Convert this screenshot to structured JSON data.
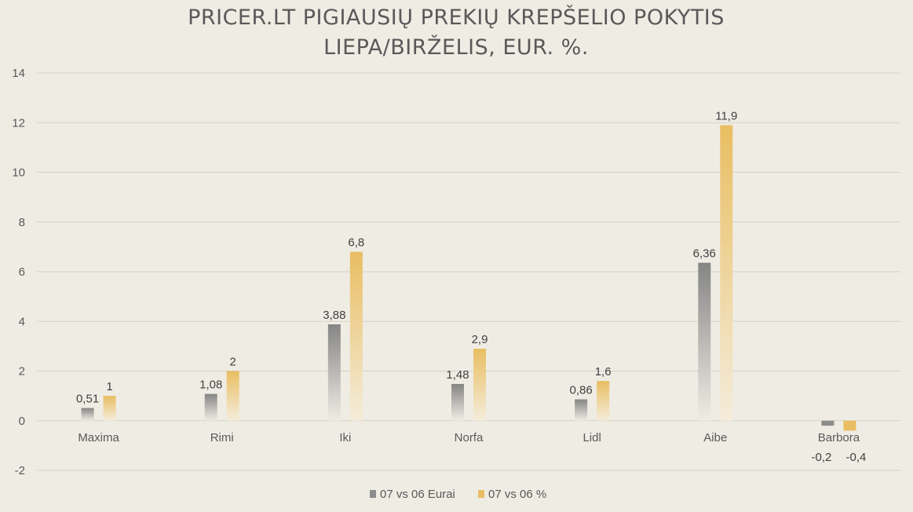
{
  "chart_data": {
    "type": "bar",
    "title": [
      "PRICER.LT PIGIAUSIŲ PREKIŲ KREPŠELIO POKYTIS",
      "LIEPA/BIRŽELIS, EUR. %."
    ],
    "categories": [
      "Maxima",
      "Rimi",
      "Iki",
      "Norfa",
      "Lidl",
      "Aibe",
      "Barbora"
    ],
    "series": [
      {
        "name": "07 vs 06 Eurai",
        "values": [
          0.51,
          1.08,
          3.88,
          1.48,
          0.86,
          6.36,
          -0.2
        ],
        "labels": [
          "0,51",
          "1,08",
          "3,88",
          "1,48",
          "0,86",
          "6,36",
          "-0,2"
        ],
        "color": "#8c8c8c"
      },
      {
        "name": "07 vs 06 %",
        "values": [
          1,
          2,
          6.8,
          2.9,
          1.6,
          11.9,
          -0.4
        ],
        "labels": [
          "1",
          "2",
          "6,8",
          "2,9",
          "1,6",
          "11,9",
          "-0,4"
        ],
        "color": "#e9be62"
      }
    ],
    "ylim": [
      -2,
      14
    ],
    "yticks": [
      -2,
      0,
      2,
      4,
      6,
      8,
      10,
      12,
      14
    ],
    "grid": true,
    "legend_position": "bottom"
  }
}
